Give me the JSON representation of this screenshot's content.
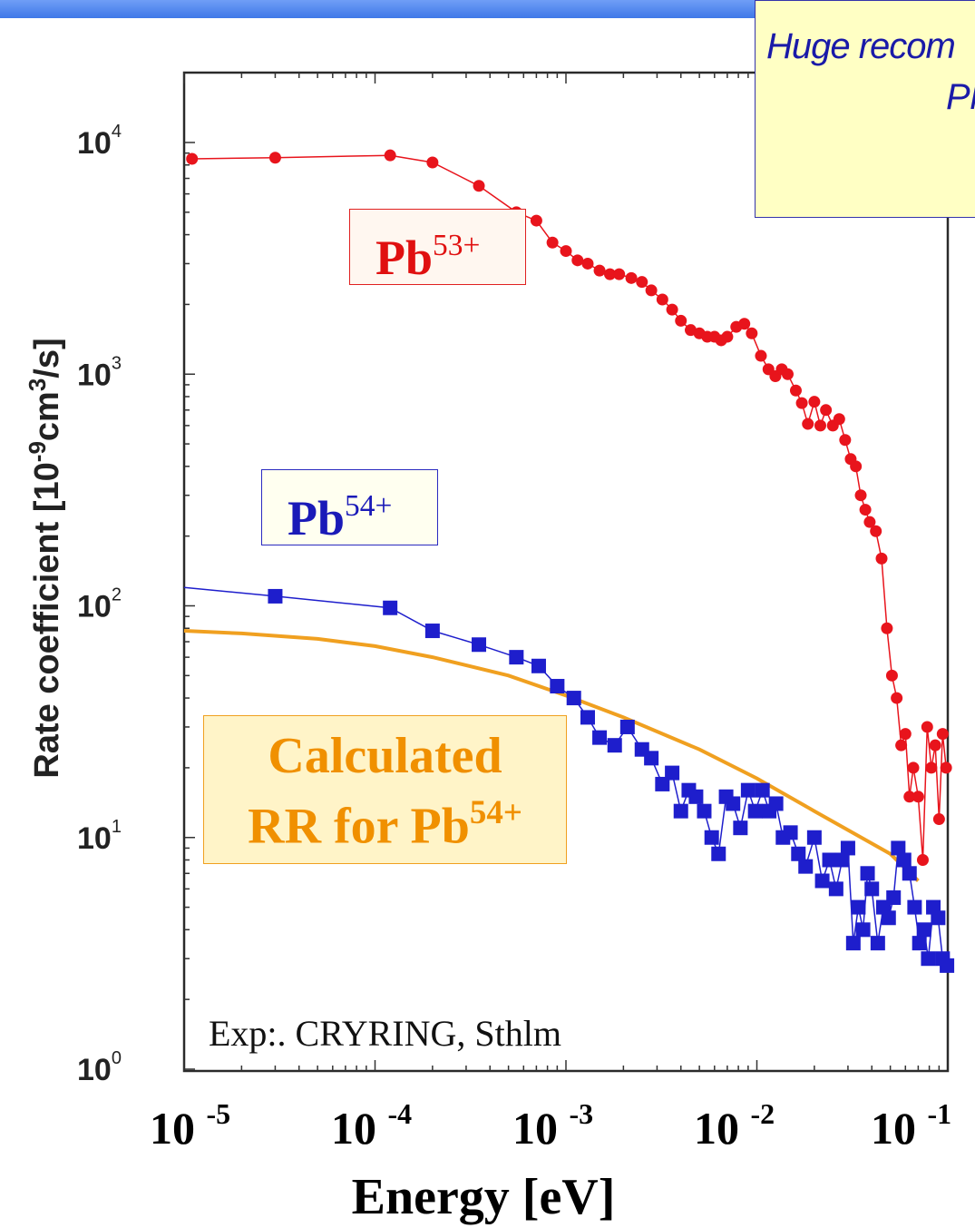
{
  "note": {
    "line1": "Huge recom",
    "line2": "Pl"
  },
  "labels": {
    "pb53": {
      "base": "Pb",
      "sup": "53+"
    },
    "pb54": {
      "base": "Pb",
      "sup": "54+"
    },
    "calc_line1": "Calculated",
    "calc_line2": "RR for Pb",
    "calc_sup": "54+"
  },
  "footnote": "Exp:. CRYRING, Sthlm",
  "colors": {
    "pb53": "#e8141c",
    "pb54": "#1e1ecc",
    "rr": "#f0a020",
    "note_bg": "#ffffc4",
    "header": "#4a80ee"
  },
  "chart_data": {
    "type": "scatter",
    "xlabel": "Energy [eV]",
    "ylabel": "Rate coefficient [10-9cm3/s]",
    "xscale": "log",
    "yscale": "log",
    "xlim": [
      1e-05,
      0.1
    ],
    "ylim": [
      1,
      20000
    ],
    "x_ticks": [
      {
        "base": "10",
        "exp": "-5"
      },
      {
        "base": "10",
        "exp": "-4"
      },
      {
        "base": "10",
        "exp": "-3"
      },
      {
        "base": "10",
        "exp": "-2"
      },
      {
        "base": "10",
        "exp": "-1"
      }
    ],
    "y_ticks": [
      {
        "base": "10",
        "exp": "0"
      },
      {
        "base": "10",
        "exp": "1"
      },
      {
        "base": "10",
        "exp": "2"
      },
      {
        "base": "10",
        "exp": "3"
      },
      {
        "base": "10",
        "exp": "4"
      }
    ],
    "series": [
      {
        "name": "Pb53+",
        "marker": "circle",
        "x": [
          1.1e-05,
          3e-05,
          0.00012,
          0.0002,
          0.00035,
          0.00055,
          0.0007,
          0.00085,
          0.001,
          0.00115,
          0.0013,
          0.0015,
          0.0017,
          0.0019,
          0.0022,
          0.0025,
          0.0028,
          0.0032,
          0.0036,
          0.004,
          0.0045,
          0.005,
          0.0055,
          0.006,
          0.0065,
          0.007,
          0.0078,
          0.0086,
          0.0094,
          0.0105,
          0.0115,
          0.0125,
          0.0135,
          0.0145,
          0.016,
          0.0172,
          0.0185,
          0.02,
          0.0215,
          0.023,
          0.025,
          0.027,
          0.029,
          0.031,
          0.033,
          0.035,
          0.037,
          0.039,
          0.042,
          0.045,
          0.048,
          0.051,
          0.054,
          0.057,
          0.06,
          0.063,
          0.066,
          0.07,
          0.074,
          0.078,
          0.082,
          0.086,
          0.09,
          0.094,
          0.098
        ],
        "y": [
          8500,
          8600,
          8800,
          8200,
          6500,
          5000,
          4600,
          3700,
          3400,
          3100,
          3000,
          2800,
          2700,
          2700,
          2600,
          2500,
          2300,
          2100,
          1900,
          1700,
          1550,
          1500,
          1450,
          1450,
          1400,
          1450,
          1600,
          1650,
          1500,
          1200,
          1050,
          980,
          1050,
          1000,
          850,
          750,
          610,
          760,
          600,
          700,
          600,
          640,
          520,
          430,
          400,
          300,
          260,
          230,
          210,
          160,
          80,
          50,
          40,
          25,
          28,
          15,
          20,
          15,
          8,
          30,
          20,
          25,
          12,
          28,
          20
        ]
      },
      {
        "name": "Pb54+",
        "marker": "square",
        "x": [
          3e-05,
          0.00012,
          0.0002,
          0.00035,
          0.00055,
          0.00072,
          0.0009,
          0.0011,
          0.0013,
          0.0015,
          0.0018,
          0.0021,
          0.0025,
          0.0028,
          0.0032,
          0.0036,
          0.004,
          0.0044,
          0.0048,
          0.0053,
          0.0058,
          0.0063,
          0.0069,
          0.0075,
          0.0082,
          0.009,
          0.0098,
          0.0107,
          0.0116,
          0.0126,
          0.0137,
          0.015,
          0.0165,
          0.018,
          0.02,
          0.022,
          0.024,
          0.026,
          0.028,
          0.03,
          0.032,
          0.034,
          0.036,
          0.038,
          0.04,
          0.043,
          0.046,
          0.049,
          0.052,
          0.055,
          0.059,
          0.063,
          0.067,
          0.071,
          0.075,
          0.079,
          0.084,
          0.089,
          0.094,
          0.099
        ],
        "y": [
          110,
          98,
          78,
          68,
          60,
          55,
          45,
          40,
          33,
          27,
          25,
          30,
          24,
          22,
          17,
          19,
          13,
          16,
          15,
          13,
          10,
          8.5,
          15,
          14,
          11,
          16,
          13,
          16,
          13,
          14,
          10,
          10.5,
          8.5,
          7.5,
          10,
          6.5,
          8,
          6,
          8,
          9,
          3.5,
          5,
          4,
          7,
          6,
          3.5,
          5,
          4.5,
          5.5,
          9,
          8,
          7,
          5,
          3.5,
          4,
          3,
          5,
          4.5,
          3,
          2.8
        ]
      },
      {
        "name": "Calculated RR for Pb54+",
        "marker": "line",
        "x": [
          1e-05,
          2e-05,
          5e-05,
          0.0001,
          0.0002,
          0.0005,
          0.001,
          0.002,
          0.005,
          0.01,
          0.02,
          0.05,
          0.07
        ],
        "y": [
          78,
          76,
          72,
          67,
          60,
          50,
          41,
          33,
          24,
          18,
          13,
          8.5,
          6.5
        ]
      }
    ]
  }
}
